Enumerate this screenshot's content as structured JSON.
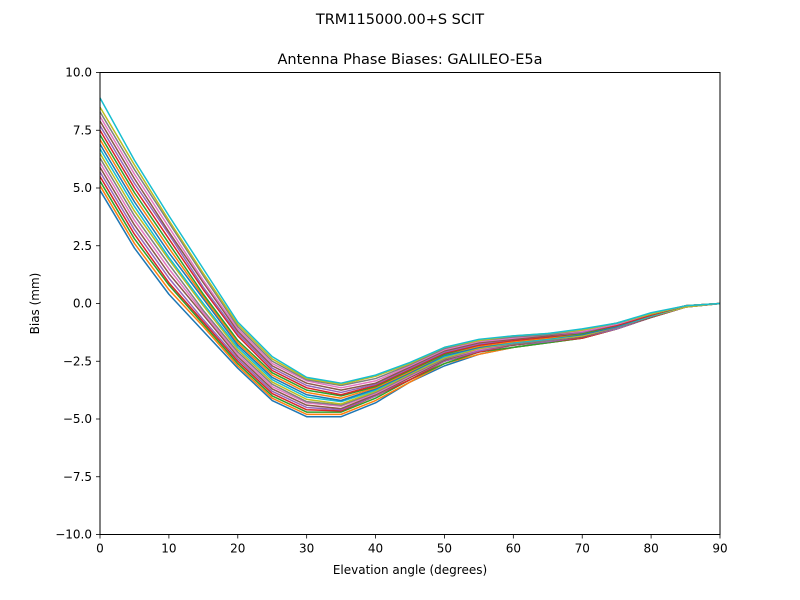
{
  "suptitle": "TRM115000.00+S  SCIT",
  "chart_data": {
    "type": "line",
    "title": "Antenna Phase Biases: GALILEO-E5a",
    "xlabel": "Elevation angle (degrees)",
    "ylabel": "Bias (mm)",
    "xlim": [
      0,
      90
    ],
    "ylim": [
      -10,
      10
    ],
    "x_ticks": [
      "0",
      "10",
      "20",
      "30",
      "40",
      "50",
      "60",
      "70",
      "80",
      "90"
    ],
    "y_ticks": [
      "10.0",
      "7.5",
      "5.0",
      "2.5",
      "0.0",
      "−2.5",
      "−5.0",
      "−7.5",
      "−10.0"
    ],
    "x_tick_values": [
      0,
      10,
      20,
      30,
      40,
      50,
      60,
      70,
      80,
      90
    ],
    "y_tick_values": [
      10,
      7.5,
      5,
      2.5,
      0,
      -2.5,
      -5,
      -7.5,
      -10
    ],
    "grid": false,
    "legend": false,
    "x": [
      0,
      5,
      10,
      15,
      20,
      25,
      30,
      35,
      40,
      45,
      50,
      55,
      60,
      65,
      70,
      75,
      80,
      85,
      90
    ],
    "colors": [
      "#1f77b4",
      "#ff7f0e",
      "#2ca02c",
      "#d62728",
      "#9467bd",
      "#8c564b",
      "#e377c2",
      "#7f7f7f",
      "#bcbd22",
      "#17becf"
    ],
    "series": [
      {
        "values": [
          4.9,
          2.4,
          0.4,
          -1.2,
          -2.8,
          -4.2,
          -4.9,
          -4.9,
          -4.3,
          -3.4,
          -2.7,
          -2.2,
          -1.9,
          -1.7,
          -1.5,
          -1.1,
          -0.6,
          -0.15,
          0.0
        ]
      },
      {
        "values": [
          5.1,
          2.6,
          0.6,
          -1.0,
          -2.7,
          -4.1,
          -4.8,
          -4.8,
          -4.2,
          -3.4,
          -2.6,
          -2.2,
          -1.9,
          -1.7,
          -1.5,
          -1.1,
          -0.6,
          -0.15,
          0.0
        ]
      },
      {
        "values": [
          5.3,
          2.8,
          0.8,
          -0.9,
          -2.6,
          -4.0,
          -4.7,
          -4.7,
          -4.1,
          -3.3,
          -2.6,
          -2.1,
          -1.9,
          -1.7,
          -1.5,
          -1.1,
          -0.6,
          -0.15,
          0.0
        ]
      },
      {
        "values": [
          5.5,
          3.0,
          0.9,
          -0.8,
          -2.5,
          -3.9,
          -4.6,
          -4.65,
          -4.0,
          -3.3,
          -2.5,
          -2.1,
          -1.8,
          -1.65,
          -1.5,
          -1.1,
          -0.6,
          -0.15,
          0.0
        ]
      },
      {
        "values": [
          5.7,
          3.2,
          1.1,
          -0.7,
          -2.4,
          -3.8,
          -4.5,
          -4.6,
          -4.0,
          -3.2,
          -2.5,
          -2.05,
          -1.8,
          -1.65,
          -1.45,
          -1.1,
          -0.6,
          -0.15,
          0.0
        ]
      },
      {
        "values": [
          5.9,
          3.4,
          1.3,
          -0.5,
          -2.3,
          -3.7,
          -4.4,
          -4.55,
          -3.95,
          -3.2,
          -2.45,
          -2.0,
          -1.8,
          -1.6,
          -1.45,
          -1.05,
          -0.6,
          -0.15,
          0.0
        ]
      },
      {
        "values": [
          6.1,
          3.6,
          1.5,
          -0.4,
          -2.2,
          -3.6,
          -4.3,
          -4.45,
          -3.9,
          -3.15,
          -2.4,
          -2.0,
          -1.75,
          -1.6,
          -1.4,
          -1.05,
          -0.55,
          -0.15,
          0.0
        ]
      },
      {
        "values": [
          6.3,
          3.8,
          1.7,
          -0.3,
          -2.1,
          -3.5,
          -4.25,
          -4.4,
          -3.85,
          -3.1,
          -2.4,
          -1.95,
          -1.75,
          -1.6,
          -1.4,
          -1.05,
          -0.55,
          -0.15,
          0.0
        ]
      },
      {
        "values": [
          6.5,
          4.0,
          1.9,
          -0.1,
          -2.0,
          -3.4,
          -4.15,
          -4.35,
          -3.8,
          -3.05,
          -2.35,
          -1.95,
          -1.7,
          -1.55,
          -1.4,
          -1.0,
          -0.55,
          -0.15,
          0.0
        ]
      },
      {
        "values": [
          6.7,
          4.2,
          2.0,
          0.0,
          -1.9,
          -3.3,
          -4.05,
          -4.25,
          -3.75,
          -3.0,
          -2.3,
          -1.9,
          -1.7,
          -1.55,
          -1.35,
          -1.0,
          -0.55,
          -0.1,
          0.0
        ]
      },
      {
        "values": [
          6.9,
          4.4,
          2.2,
          0.2,
          -1.8,
          -3.2,
          -3.95,
          -4.2,
          -3.7,
          -3.0,
          -2.25,
          -1.9,
          -1.65,
          -1.5,
          -1.35,
          -1.0,
          -0.5,
          -0.1,
          0.0
        ]
      },
      {
        "values": [
          7.1,
          4.6,
          2.4,
          0.3,
          -1.7,
          -3.1,
          -3.85,
          -4.1,
          -3.65,
          -2.95,
          -2.2,
          -1.85,
          -1.65,
          -1.5,
          -1.3,
          -0.95,
          -0.5,
          -0.1,
          0.0
        ]
      },
      {
        "values": [
          7.3,
          4.8,
          2.6,
          0.4,
          -1.6,
          -3.0,
          -3.75,
          -4.0,
          -3.6,
          -2.9,
          -2.2,
          -1.8,
          -1.6,
          -1.45,
          -1.3,
          -0.95,
          -0.5,
          -0.1,
          0.0
        ]
      },
      {
        "values": [
          7.5,
          5.0,
          2.8,
          0.6,
          -1.4,
          -2.9,
          -3.65,
          -3.95,
          -3.55,
          -2.85,
          -2.15,
          -1.8,
          -1.6,
          -1.45,
          -1.25,
          -0.95,
          -0.5,
          -0.1,
          0.0
        ]
      },
      {
        "values": [
          7.7,
          5.2,
          3.0,
          0.7,
          -1.3,
          -2.8,
          -3.55,
          -3.85,
          -3.5,
          -2.8,
          -2.1,
          -1.75,
          -1.55,
          -1.4,
          -1.25,
          -0.9,
          -0.45,
          -0.1,
          0.0
        ]
      },
      {
        "values": [
          7.9,
          5.4,
          3.1,
          0.9,
          -1.2,
          -2.7,
          -3.45,
          -3.75,
          -3.45,
          -2.75,
          -2.05,
          -1.7,
          -1.55,
          -1.4,
          -1.2,
          -0.9,
          -0.45,
          -0.1,
          0.0
        ]
      },
      {
        "values": [
          8.1,
          5.6,
          3.3,
          1.0,
          -1.1,
          -2.6,
          -3.35,
          -3.65,
          -3.35,
          -2.7,
          -2.0,
          -1.65,
          -1.5,
          -1.35,
          -1.2,
          -0.9,
          -0.45,
          -0.1,
          0.0
        ]
      },
      {
        "values": [
          8.3,
          5.8,
          3.5,
          1.2,
          -1.0,
          -2.5,
          -3.3,
          -3.55,
          -3.25,
          -2.65,
          -1.95,
          -1.6,
          -1.45,
          -1.35,
          -1.15,
          -0.85,
          -0.45,
          -0.1,
          0.0
        ]
      },
      {
        "values": [
          8.5,
          6.0,
          3.6,
          1.3,
          -0.9,
          -2.4,
          -3.25,
          -3.5,
          -3.15,
          -2.6,
          -1.9,
          -1.6,
          -1.4,
          -1.3,
          -1.15,
          -0.85,
          -0.45,
          -0.1,
          0.0
        ]
      },
      {
        "values": [
          8.9,
          6.2,
          3.8,
          1.5,
          -0.8,
          -2.3,
          -3.2,
          -3.45,
          -3.1,
          -2.55,
          -1.9,
          -1.55,
          -1.4,
          -1.3,
          -1.1,
          -0.85,
          -0.4,
          -0.1,
          0.0
        ]
      }
    ]
  }
}
